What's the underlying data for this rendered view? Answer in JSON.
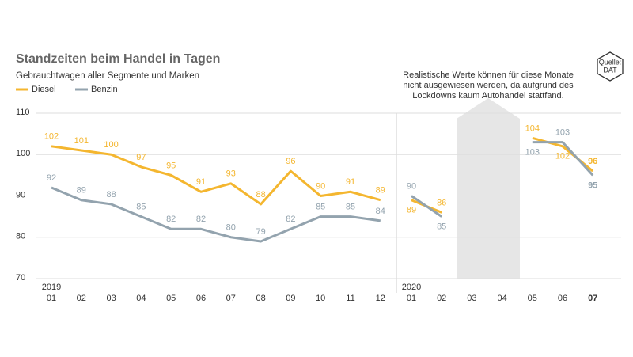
{
  "chart_data": {
    "type": "line",
    "title": "Standzeiten beim Handel in Tagen",
    "subtitle": "Gebrauchtwagen aller Segmente und Marken",
    "annotation": [
      "Realistische Werte können für diese Monate",
      "nicht ausgewiesen werden, da aufgrund des",
      "Lockdowns kaum Autohandel stattfand."
    ],
    "source": [
      "Quelle:",
      "DAT"
    ],
    "years": [
      "2019",
      "2020"
    ],
    "categories": [
      "01",
      "02",
      "03",
      "04",
      "05",
      "06",
      "07",
      "08",
      "09",
      "10",
      "11",
      "12",
      "01",
      "02",
      "03",
      "04",
      "05",
      "06",
      "07"
    ],
    "series": [
      {
        "name": "Diesel",
        "color": "#f4b62f",
        "values": [
          102,
          101,
          100,
          97,
          95,
          91,
          93,
          88,
          96,
          90,
          91,
          89,
          89,
          86,
          null,
          null,
          104,
          102,
          96
        ]
      },
      {
        "name": "Benzin",
        "color": "#93a3ae",
        "values": [
          92,
          89,
          88,
          85,
          82,
          82,
          80,
          79,
          82,
          85,
          85,
          84,
          90,
          85,
          null,
          null,
          103,
          103,
          95
        ]
      }
    ],
    "ylim": [
      70,
      110
    ],
    "yticks": [
      70,
      80,
      90,
      100,
      110
    ],
    "grid": true
  }
}
